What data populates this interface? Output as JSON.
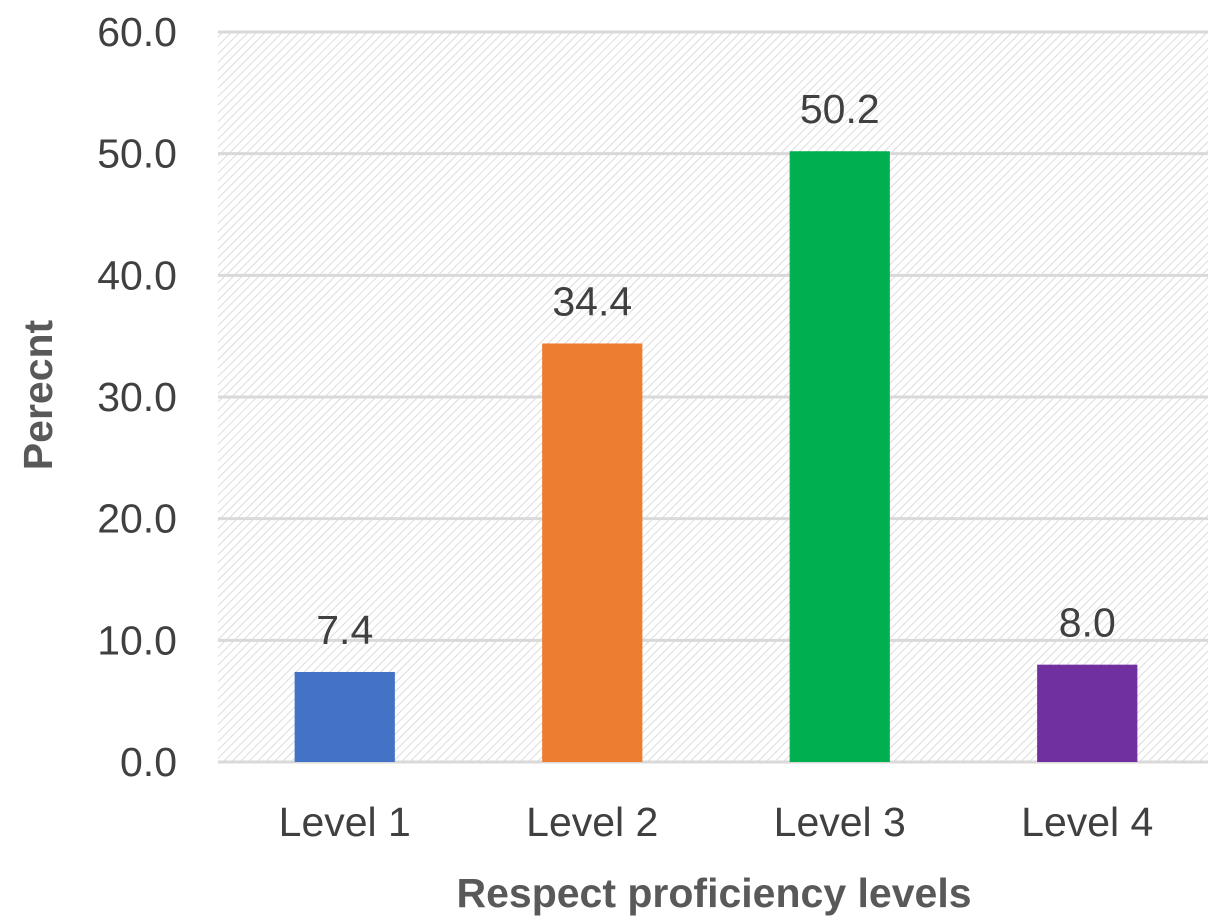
{
  "chart_data": {
    "type": "bar",
    "title": "",
    "xlabel": "Respect proficiency levels",
    "ylabel": "Perecnt",
    "categories": [
      "Level 1",
      "Level 2",
      "Level 3",
      "Level 4"
    ],
    "values": [
      7.4,
      34.4,
      50.2,
      8.0
    ],
    "data_labels": [
      "7.4",
      "34.4",
      "50.2",
      "8.0"
    ],
    "colors": [
      "#4472c4",
      "#ed7d31",
      "#00b050",
      "#7030a0"
    ],
    "ylim": [
      0,
      60
    ],
    "yticks": [
      0,
      10,
      20,
      30,
      40,
      50,
      60
    ],
    "ytick_labels": [
      "0.0",
      "10.0",
      "20.0",
      "30.0",
      "40.0",
      "50.0",
      "60.0"
    ],
    "grid": true,
    "legend": "none",
    "plot_background": "diagonal-hatch",
    "gridline_color": "#d9d9d9"
  }
}
